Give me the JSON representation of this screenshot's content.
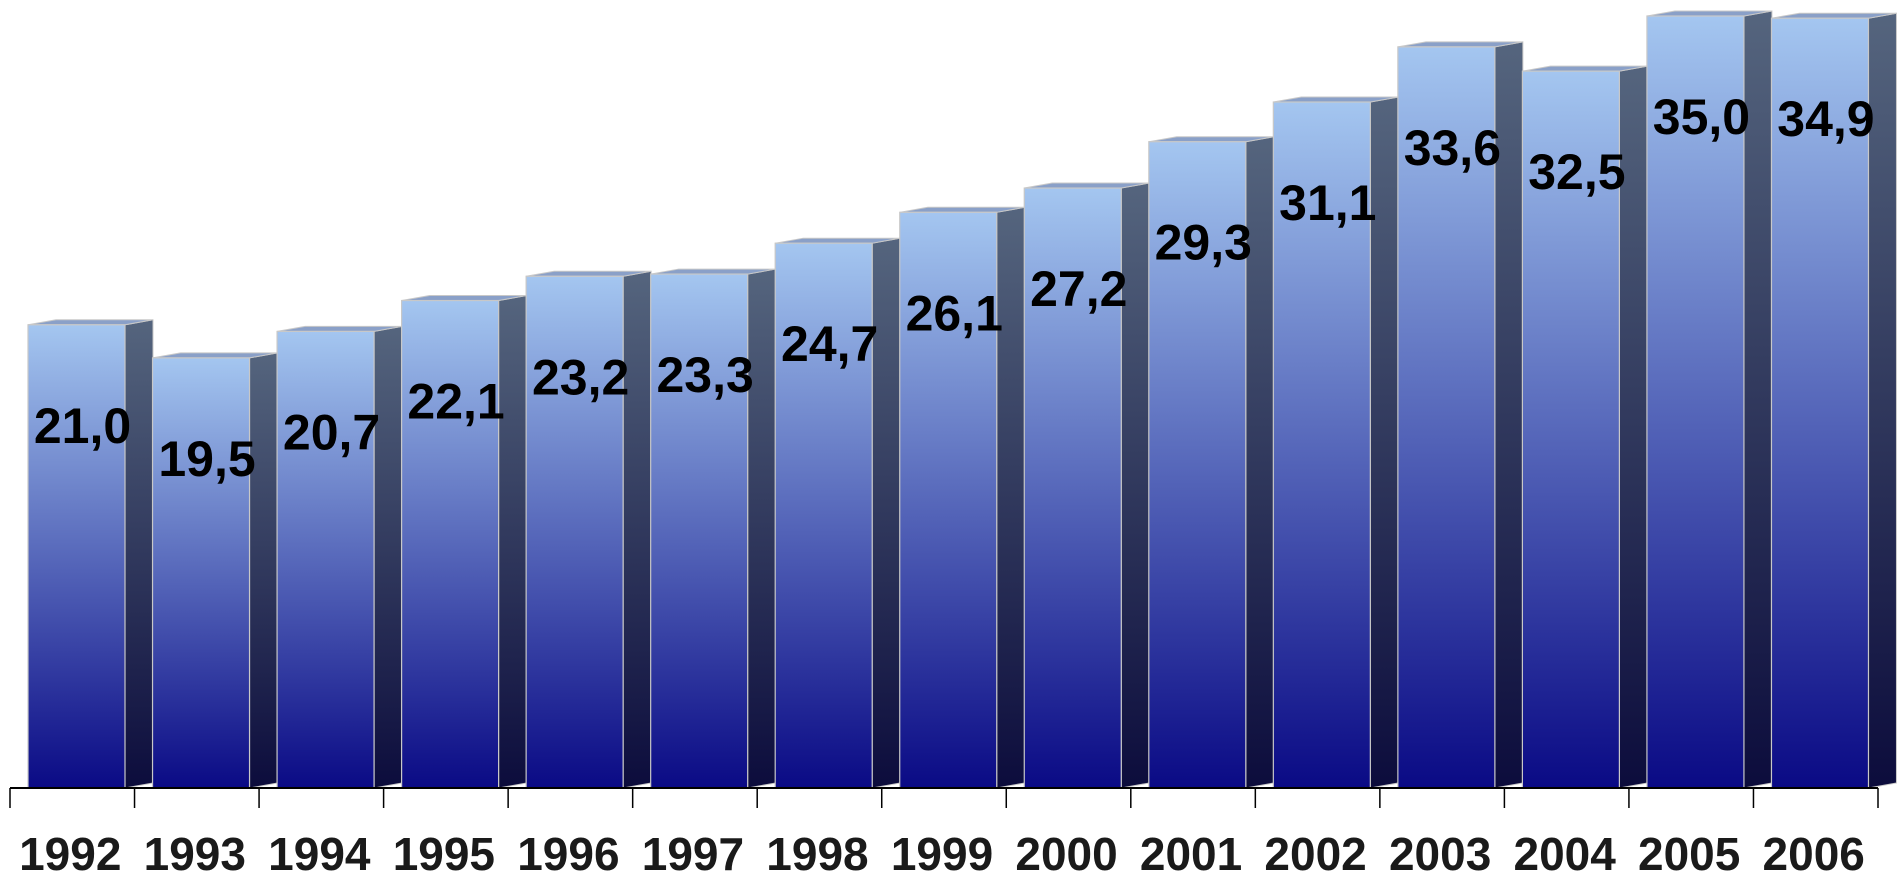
{
  "chart_data": {
    "type": "bar",
    "style": "3d-column",
    "categories": [
      "1992",
      "1993",
      "1994",
      "1995",
      "1996",
      "1997",
      "1998",
      "1999",
      "2000",
      "2001",
      "2002",
      "2003",
      "2004",
      "2005",
      "2006"
    ],
    "values": [
      21.0,
      19.5,
      20.7,
      22.1,
      23.2,
      23.3,
      24.7,
      26.1,
      27.2,
      29.3,
      31.1,
      33.6,
      32.5,
      35.0,
      34.9
    ],
    "value_labels": [
      "21,0",
      "19,5",
      "20,7",
      "22,1",
      "23,2",
      "23,3",
      "24,7",
      "26,1",
      "27,2",
      "29,3",
      "31,1",
      "33,6",
      "32,5",
      "35,0",
      "34,9"
    ],
    "title": "",
    "xlabel": "",
    "ylabel": "",
    "ylim": [
      0,
      35
    ],
    "grid": false,
    "legend": "none",
    "colors": {
      "front_top": "#a4c6f0",
      "front_bottom": "#0a0a85",
      "side_top": "#55657e",
      "side_bottom": "#0c0c3c",
      "top_face": "#8aa0c8",
      "edge": "#c8c8c8",
      "axis": "#000000"
    }
  }
}
